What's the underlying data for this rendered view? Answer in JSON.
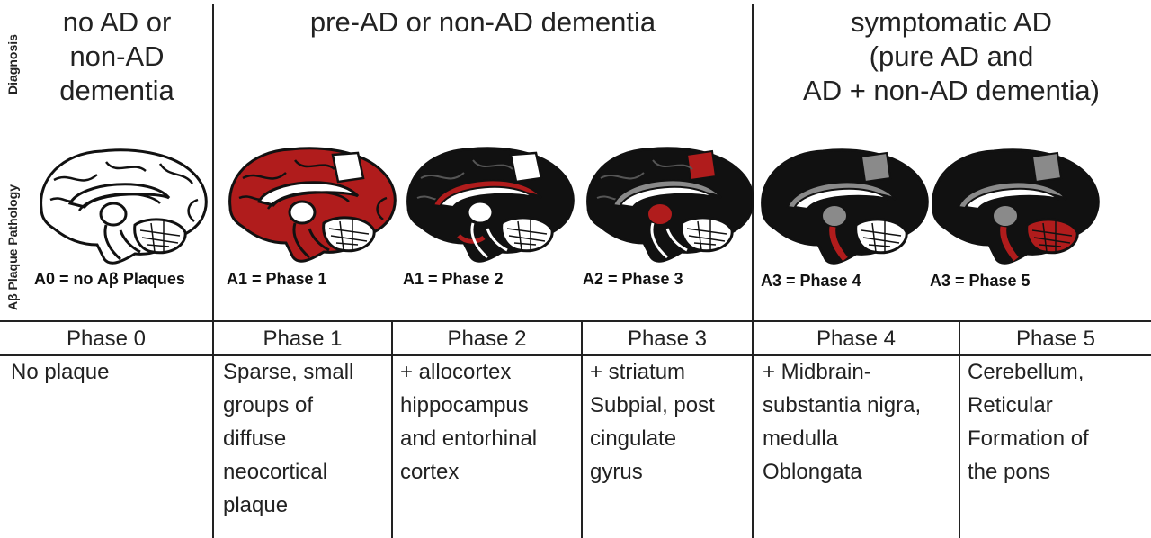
{
  "side_labels": {
    "diagnosis": "Diagnosis",
    "pathology": "Aβ Plaque Pathology"
  },
  "diagnosis": {
    "group1": [
      "no AD or",
      "non-AD",
      "dementia"
    ],
    "group2": [
      "pre-AD or non-AD dementia"
    ],
    "group3": [
      "symptomatic AD",
      "(pure AD and",
      "AD + non-AD dementia)"
    ]
  },
  "stages": [
    {
      "label": "A0 = no Aβ Plaques"
    },
    {
      "label": "A1 = Phase 1"
    },
    {
      "label": "A1 = Phase 2"
    },
    {
      "label": "A2 = Phase 3"
    },
    {
      "label": "A3 = Phase 4"
    },
    {
      "label": "A3 = Phase 5"
    }
  ],
  "phases": [
    {
      "name": "Phase 0",
      "lines": [
        "No plaque"
      ]
    },
    {
      "name": "Phase 1",
      "lines": [
        "Sparse, small",
        "groups of",
        "diffuse",
        "neocortical",
        "plaque"
      ]
    },
    {
      "name": "Phase 2",
      "lines": [
        "+ allocortex",
        "hippocampus",
        "and entorhinal",
        "cortex"
      ]
    },
    {
      "name": "Phase 3",
      "lines": [
        "+ striatum",
        "Subpial, post",
        "cingulate",
        "gyrus"
      ]
    },
    {
      "name": "Phase 4",
      "lines": [
        "+ Midbrain-",
        "substantia nigra,",
        "medulla",
        "Oblongata"
      ]
    },
    {
      "name": "Phase 5",
      "lines": [
        "Cerebellum,",
        "Reticular",
        "Formation of",
        "the pons"
      ]
    }
  ],
  "colors": {
    "plaque": "#b01c1c",
    "tissue_dark": "#111111",
    "outline": "#111111",
    "grey_region": "#8a8a8a"
  }
}
